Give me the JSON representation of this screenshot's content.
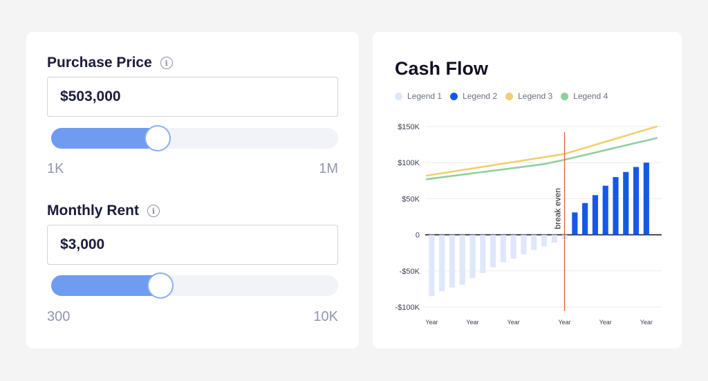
{
  "purchase_price": {
    "label": "Purchase Price",
    "value": "$503,000",
    "slider_fraction": 0.37,
    "min_label": "1K",
    "max_label": "1M"
  },
  "monthly_rent": {
    "label": "Monthly Rent",
    "value": "$3,000",
    "slider_fraction": 0.38,
    "min_label": "300",
    "max_label": "10K"
  },
  "info_glyph": "i",
  "chart_data": {
    "type": "bar",
    "title": "Cash Flow",
    "legend_placement": "top",
    "legend": [
      {
        "name": "Legend 1",
        "color": "#dfe7fb"
      },
      {
        "name": "Legend 2",
        "color": "#1458e8"
      },
      {
        "name": "Legend 3",
        "color": "#f2cf6c"
      },
      {
        "name": "Legend 4",
        "color": "#8fcf9e"
      }
    ],
    "ylim": [
      -100000,
      150000
    ],
    "y_ticks": [
      {
        "value": 150000,
        "label": "$150K"
      },
      {
        "value": 100000,
        "label": "$100K"
      },
      {
        "value": 50000,
        "label": "$50K"
      },
      {
        "value": 0,
        "label": "0"
      },
      {
        "value": -50000,
        "label": "-$50K"
      },
      {
        "value": -100000,
        "label": "-$100K"
      }
    ],
    "x_tick_labels": [
      {
        "label": "Year",
        "at": 1
      },
      {
        "label": "Year",
        "at": 5
      },
      {
        "label": "Year",
        "at": 9
      },
      {
        "label": "Year",
        "at": 14
      },
      {
        "label": "Year",
        "at": 18
      },
      {
        "label": "Year",
        "at": 22
      }
    ],
    "break_even_at": 14,
    "break_even_label": "break even",
    "series": [
      {
        "name": "Legend 1",
        "type": "bar",
        "color": "#dfe7fb",
        "values": [
          -85000,
          -78000,
          -73000,
          -69000,
          -60000,
          -53000,
          -45000,
          -38000,
          -33000,
          -27000,
          -21000,
          -16000,
          -11000,
          -6000
        ]
      },
      {
        "name": "Legend 2",
        "type": "bar",
        "color": "#1458e8",
        "values": [
          31000,
          44000,
          55000,
          68000,
          80000,
          87000,
          94000,
          100000
        ]
      },
      {
        "name": "Legend 3",
        "type": "line",
        "color": "#f2cf6c",
        "x": [
          0.5,
          14,
          23
        ],
        "values": [
          82000,
          112000,
          150000
        ]
      },
      {
        "name": "Legend 4",
        "type": "line",
        "color": "#8fcf9e",
        "x": [
          0.5,
          12,
          14,
          23
        ],
        "values": [
          77000,
          98000,
          104000,
          134000
        ]
      }
    ]
  }
}
